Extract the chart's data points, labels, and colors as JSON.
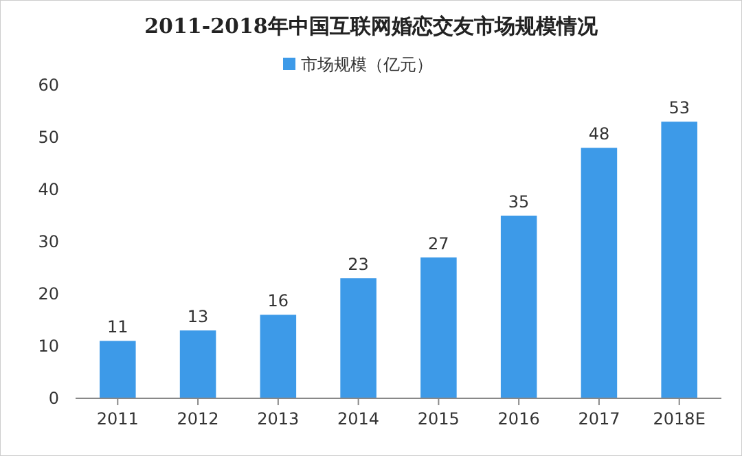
{
  "chart_data": {
    "type": "bar",
    "title": "2011-2018年中国互联网婚恋交友市场规模情况",
    "categories": [
      "2011",
      "2012",
      "2013",
      "2014",
      "2015",
      "2016",
      "2017",
      "2018E"
    ],
    "series": [
      {
        "name": "市场规模（亿元）",
        "color": "#3d9ae8",
        "values": [
          11,
          13,
          16,
          23,
          27,
          35,
          48,
          53
        ]
      }
    ],
    "ylim": [
      0,
      60
    ],
    "yticks": [
      0,
      10,
      20,
      30,
      40,
      50,
      60
    ],
    "data_labels": true,
    "legend": "top"
  }
}
